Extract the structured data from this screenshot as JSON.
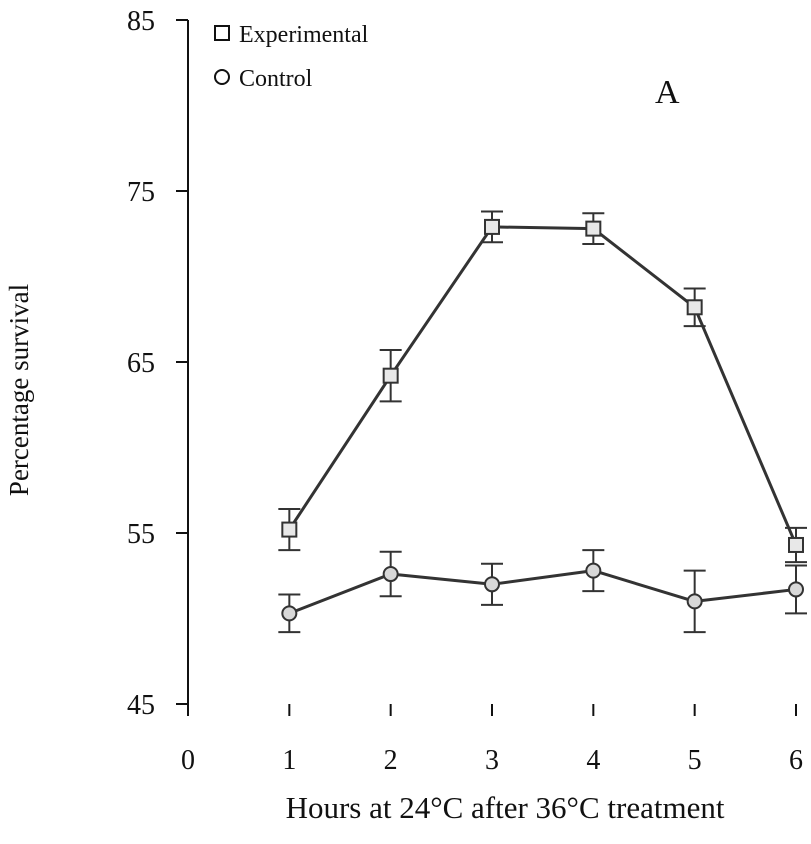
{
  "chart_data": {
    "type": "line",
    "title": "",
    "panel_label": "A",
    "xlabel": "Hours at 24°C after 36°C treatment",
    "ylabel": "Percentage survival",
    "xlim": [
      0,
      6
    ],
    "ylim": [
      45,
      85
    ],
    "x_ticks": [
      "0",
      "1",
      "2",
      "3",
      "4",
      "5",
      "6"
    ],
    "y_ticks": [
      "45",
      "55",
      "65",
      "75",
      "85"
    ],
    "grid": false,
    "legend_position": "top-left",
    "series": [
      {
        "name": "Experimental",
        "marker": "square",
        "color": "#333333",
        "x": [
          1,
          2,
          3,
          4,
          5,
          6
        ],
        "y": [
          55.2,
          64.2,
          72.9,
          72.8,
          68.2,
          54.3
        ],
        "err": [
          1.2,
          1.5,
          0.9,
          0.9,
          1.1,
          1.0
        ]
      },
      {
        "name": "Control",
        "marker": "circle",
        "color": "#333333",
        "x": [
          1,
          2,
          3,
          4,
          5,
          6
        ],
        "y": [
          50.3,
          52.6,
          52.0,
          52.8,
          51.0,
          51.7
        ],
        "err": [
          1.1,
          1.3,
          1.2,
          1.2,
          1.8,
          1.4
        ]
      }
    ]
  }
}
